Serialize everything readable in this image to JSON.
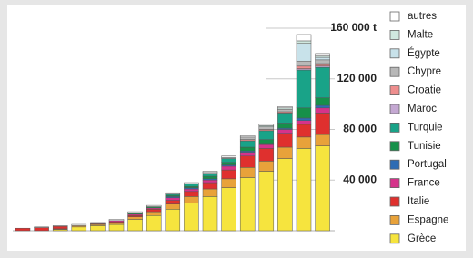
{
  "chart_data": {
    "type": "stacked_bar",
    "categories": [
      null,
      null,
      null,
      null,
      null,
      null,
      null,
      null,
      null,
      null,
      null,
      null,
      null,
      null,
      null,
      null,
      null
    ],
    "series": [
      {
        "name": "Grèce",
        "color": "#f6e43e",
        "values": [
          0,
          0,
          1000,
          3000,
          4000,
          5000,
          9000,
          12000,
          17000,
          22000,
          27000,
          34000,
          42000,
          47000,
          57000,
          65000,
          67000
        ]
      },
      {
        "name": "Espagne",
        "color": "#e8a23a",
        "values": [
          0,
          0,
          500,
          1000,
          1000,
          1000,
          2000,
          3000,
          4000,
          5000,
          6000,
          7000,
          8000,
          8000,
          9000,
          9000,
          9000
        ]
      },
      {
        "name": "Italie",
        "color": "#df302e",
        "values": [
          2000,
          2500,
          2000,
          0,
          500,
          1000,
          1000,
          2000,
          3000,
          4000,
          5000,
          7000,
          9000,
          10000,
          11000,
          10000,
          17000
        ]
      },
      {
        "name": "France",
        "color": "#d5338b",
        "values": [
          0,
          0,
          0,
          0,
          0,
          1000,
          1000,
          1000,
          2000,
          2000,
          2000,
          3000,
          3000,
          3000,
          3000,
          3000,
          4000
        ]
      },
      {
        "name": "Portugal",
        "color": "#2e6cb4",
        "values": [
          0,
          0,
          0,
          0,
          0,
          0,
          0,
          0,
          1000,
          1000,
          1000,
          1000,
          1000,
          1000,
          1000,
          2000,
          2000
        ]
      },
      {
        "name": "Tunisie",
        "color": "#16904a",
        "values": [
          0,
          0,
          0,
          0,
          0,
          0,
          1000,
          1000,
          1000,
          1000,
          2000,
          2000,
          3000,
          3000,
          4000,
          8000,
          6000
        ]
      },
      {
        "name": "Turquie",
        "color": "#19a388",
        "values": [
          0,
          0,
          0,
          0,
          0,
          0,
          0,
          0,
          1000,
          2000,
          2000,
          3000,
          5000,
          7000,
          8000,
          30000,
          24000
        ]
      },
      {
        "name": "Maroc",
        "color": "#c4a8d2",
        "values": [
          0,
          0,
          0,
          0,
          0,
          0,
          0,
          0,
          0,
          0,
          0,
          0,
          0,
          0,
          0,
          1000,
          1000
        ]
      },
      {
        "name": "Croatie",
        "color": "#ee8e8e",
        "values": [
          0,
          0,
          0,
          0,
          0,
          0,
          0,
          0,
          0,
          0,
          0,
          0,
          1000,
          1000,
          1000,
          2000,
          2000
        ]
      },
      {
        "name": "Chypre",
        "color": "#b8b8b8",
        "values": [
          0,
          0,
          0,
          0,
          0,
          0,
          0,
          0,
          0,
          0,
          1000,
          1000,
          2000,
          2000,
          2000,
          4000,
          3000
        ]
      },
      {
        "name": "Égypte",
        "color": "#c8e2ea",
        "values": [
          0,
          0,
          0,
          0,
          0,
          0,
          0,
          0,
          0,
          0,
          0,
          0,
          0,
          0,
          0,
          14000,
          2000
        ]
      },
      {
        "name": "Malte",
        "color": "#d0e8df",
        "values": [
          0,
          0,
          0,
          0,
          0,
          0,
          0,
          0,
          0,
          0,
          0,
          0,
          0,
          1000,
          1000,
          2000,
          1000
        ]
      },
      {
        "name": "autres",
        "color": "#ffffff",
        "values": [
          0,
          500,
          500,
          1000,
          1000,
          1000,
          1000,
          1000,
          1000,
          1000,
          1000,
          1000,
          1000,
          1000,
          1000,
          5000,
          2000
        ]
      }
    ],
    "ylim": [
      0,
      160000
    ],
    "yticks": [
      {
        "value": 40000,
        "label": "40 000"
      },
      {
        "value": 80000,
        "label": "80 000"
      },
      {
        "value": 120000,
        "label": "120 000"
      },
      {
        "value": 160000,
        "label": "160 000 t"
      }
    ],
    "grid": true,
    "legend": "right"
  }
}
